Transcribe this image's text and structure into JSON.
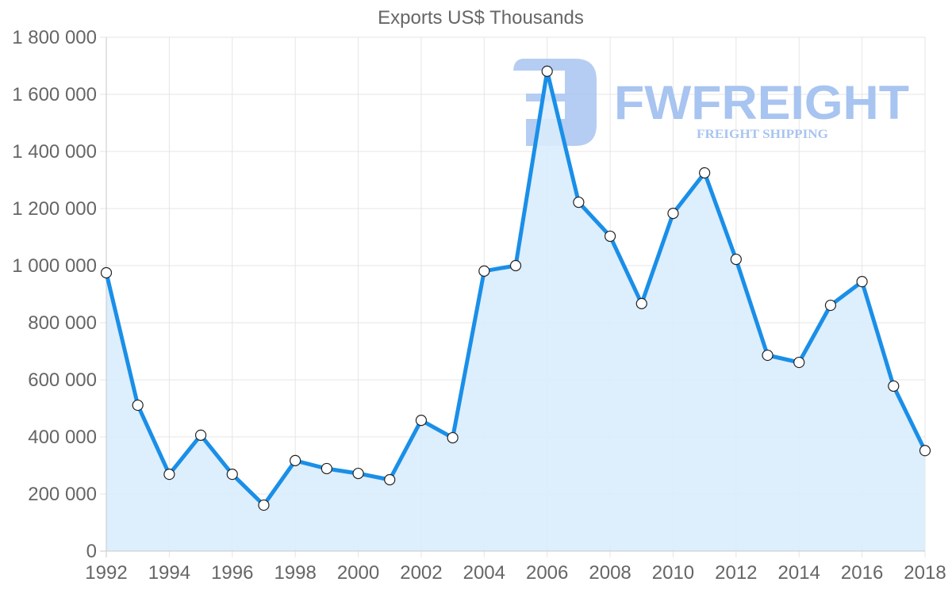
{
  "chart_data": {
    "type": "area",
    "title": "Exports US$ Thousands",
    "xlabel": "",
    "ylabel": "",
    "x": [
      1992,
      1993,
      1994,
      1995,
      1996,
      1997,
      1998,
      1999,
      2000,
      2001,
      2002,
      2003,
      2004,
      2005,
      2006,
      2007,
      2008,
      2009,
      2010,
      2011,
      2012,
      2013,
      2014,
      2015,
      2016,
      2017,
      2018
    ],
    "series": [
      {
        "name": "Exports US$ Thousands",
        "values": [
          975000,
          511000,
          269000,
          406000,
          269000,
          161000,
          317000,
          289000,
          272000,
          250000,
          458000,
          397000,
          981000,
          1000000,
          1681000,
          1222000,
          1103000,
          867000,
          1183000,
          1325000,
          1022000,
          686000,
          661000,
          861000,
          944000,
          578000,
          352000
        ]
      }
    ],
    "xticks": [
      "1992",
      "1994",
      "1996",
      "1998",
      "2000",
      "2002",
      "2004",
      "2006",
      "2008",
      "2010",
      "2012",
      "2014",
      "2016",
      "2018"
    ],
    "yticks": [
      "0",
      "200 000",
      "400 000",
      "600 000",
      "800 000",
      "1 000 000",
      "1 200 000",
      "1 400 000",
      "1 600 000",
      "1 800 000"
    ],
    "ylim": [
      0,
      1800000
    ],
    "xlim": [
      1992,
      2018
    ],
    "grid": true,
    "legend": "none",
    "colors": {
      "line": "#1a8fe8",
      "fill": "#d9ecfc",
      "point_fill": "#ffffff",
      "point_stroke": "#222222"
    }
  },
  "watermark": {
    "brand": "FWFREIGHT",
    "tagline": "FREIGHT SHIPPING"
  }
}
